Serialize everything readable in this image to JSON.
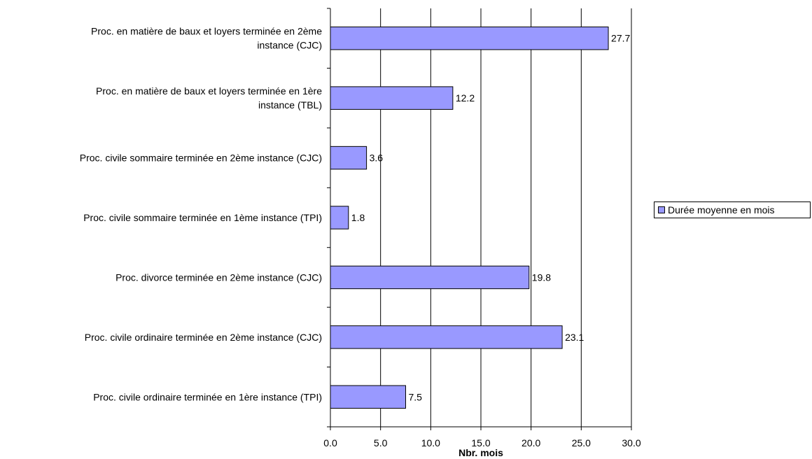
{
  "chart_data": {
    "type": "bar",
    "orientation": "horizontal",
    "categories": [
      "Proc. civile ordinaire terminée en 1ère instance (TPI)",
      "Proc. civile ordinaire terminée en 2ème instance (CJC)",
      "Proc. divorce terminée en 2ème instance (CJC)",
      "Proc. civile sommaire terminée en 1ème instance (TPI)",
      "Proc. civile sommaire terminée en 2ème instance (CJC)",
      "Proc. en matière de baux et loyers terminée en 1ère instance (TBL)",
      "Proc. en matière de baux et loyers terminée en 2ème instance (CJC)"
    ],
    "category_label_lines": [
      [
        "Proc. civile ordinaire terminée en 1ère instance (TPI)"
      ],
      [
        "Proc. civile ordinaire terminée en 2ème instance (CJC)"
      ],
      [
        "Proc. divorce terminée en 2ème instance (CJC)"
      ],
      [
        "Proc. civile sommaire terminée en 1ème instance (TPI)"
      ],
      [
        "Proc. civile sommaire terminée en 2ème instance (CJC)"
      ],
      [
        "Proc. en matière de baux et loyers terminée en 1ère",
        "instance (TBL)"
      ],
      [
        "Proc. en matière de baux et loyers terminée en 2ème",
        "instance (CJC)"
      ]
    ],
    "series": [
      {
        "name": "Durée moyenne en mois",
        "values": [
          7.5,
          23.1,
          19.8,
          1.8,
          3.6,
          12.2,
          27.7
        ],
        "data_labels": [
          "7.5",
          "23.1",
          "19.8",
          "1.8",
          "3.6",
          "12.2",
          "27.7"
        ],
        "color": "#9999ff"
      }
    ],
    "xlabel": "Nbr. mois",
    "xlim": [
      0,
      30
    ],
    "xticks": [
      0,
      5,
      10,
      15,
      20,
      25,
      30
    ],
    "xtick_labels": [
      "0.0",
      "5.0",
      "10.0",
      "15.0",
      "20.0",
      "25.0",
      "30.0"
    ],
    "grid": "vertical major gridlines",
    "legend": "right",
    "bar_border_color": "#000000",
    "grid_color": "#000000"
  }
}
